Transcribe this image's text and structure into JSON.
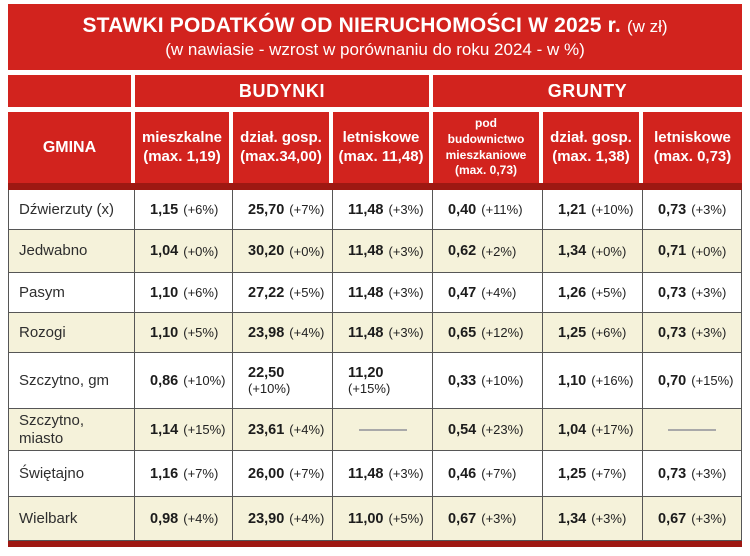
{
  "title": {
    "main": "STAWKI PODATKÓW OD NIERUCHOMOŚCI W 2025 r.",
    "suffix": "(w zł)",
    "subtitle": "(w nawiasie - wzrost w porównaniu do roku 2024 - w %)"
  },
  "colors": {
    "red": "#d2231e",
    "dark_red": "#9e1812",
    "cream_row": "#f5f2da",
    "grid_line": "#565656"
  },
  "chart_data": {
    "type": "table",
    "title": "STAWKI PODATKÓW OD NIERUCHOMOŚCI W 2025 r. (w zł)",
    "subtitle": "(w nawiasie - wzrost w porównaniu do roku 2024 - w %)",
    "groups": [
      "BUDYNKI",
      "GRUNTY"
    ],
    "columns": [
      {
        "label": "GMINA",
        "max": ""
      },
      {
        "label": "mieszkalne",
        "max": "(max. 1,19)"
      },
      {
        "label": "dział. gosp.",
        "max": "(max.34,00)"
      },
      {
        "label": "letniskowe",
        "max": "(max. 11,48)"
      },
      {
        "label": "pod budownictwo mieszkaniowe",
        "max": "(max. 0,73)"
      },
      {
        "label": "dział. gosp.",
        "max": "(max. 1,38)"
      },
      {
        "label": "letniskowe",
        "max": "(max. 0,73)"
      }
    ],
    "rows": [
      {
        "gmina": "Dźwierzuty (x)",
        "cells": [
          {
            "v": "1,15",
            "p": "(+6%)"
          },
          {
            "v": "25,70",
            "p": "(+7%)"
          },
          {
            "v": "11,48",
            "p": "(+3%)"
          },
          {
            "v": "0,40",
            "p": "(+11%)"
          },
          {
            "v": "1,21",
            "p": "(+10%)"
          },
          {
            "v": "0,73",
            "p": "(+3%)"
          }
        ]
      },
      {
        "gmina": "Jedwabno",
        "cells": [
          {
            "v": "1,04",
            "p": "(+0%)"
          },
          {
            "v": "30,20",
            "p": "(+0%)"
          },
          {
            "v": "11,48",
            "p": "(+3%)"
          },
          {
            "v": "0,62",
            "p": "(+2%)"
          },
          {
            "v": "1,34",
            "p": "(+0%)"
          },
          {
            "v": "0,71",
            "p": "(+0%)"
          }
        ]
      },
      {
        "gmina": "Pasym",
        "cells": [
          {
            "v": "1,10",
            "p": "(+6%)"
          },
          {
            "v": "27,22",
            "p": "(+5%)"
          },
          {
            "v": "11,48",
            "p": "(+3%)"
          },
          {
            "v": "0,47",
            "p": "(+4%)"
          },
          {
            "v": "1,26",
            "p": "(+5%)"
          },
          {
            "v": "0,73",
            "p": "(+3%)"
          }
        ]
      },
      {
        "gmina": "Rozogi",
        "cells": [
          {
            "v": "1,10",
            "p": "(+5%)"
          },
          {
            "v": "23,98",
            "p": "(+4%)"
          },
          {
            "v": "11,48",
            "p": "(+3%)"
          },
          {
            "v": "0,65",
            "p": "(+12%)"
          },
          {
            "v": "1,25",
            "p": "(+6%)"
          },
          {
            "v": "0,73",
            "p": "(+3%)"
          }
        ]
      },
      {
        "gmina": "Szczytno, gm",
        "cells": [
          {
            "v": "0,86",
            "p": "(+10%)"
          },
          {
            "v": "22,50",
            "p": "(+10%)"
          },
          {
            "v": "11,20",
            "p": "(+15%)"
          },
          {
            "v": "0,33",
            "p": "(+10%)"
          },
          {
            "v": "1,10",
            "p": "(+16%)"
          },
          {
            "v": "0,70",
            "p": "(+15%)"
          }
        ]
      },
      {
        "gmina": "Szczytno, miasto",
        "cells": [
          {
            "v": "1,14",
            "p": "(+15%)"
          },
          {
            "v": "23,61",
            "p": "(+4%)"
          },
          {
            "dash": true
          },
          {
            "v": "0,54",
            "p": "(+23%)"
          },
          {
            "v": "1,04",
            "p": "(+17%)"
          },
          {
            "dash": true
          }
        ]
      },
      {
        "gmina": "Świętajno",
        "cells": [
          {
            "v": "1,16",
            "p": "(+7%)"
          },
          {
            "v": "26,00",
            "p": "(+7%)"
          },
          {
            "v": "11,48",
            "p": "(+3%)"
          },
          {
            "v": "0,46",
            "p": "(+7%)"
          },
          {
            "v": "1,25",
            "p": "(+7%)"
          },
          {
            "v": "0,73",
            "p": "(+3%)"
          }
        ]
      },
      {
        "gmina": "Wielbark",
        "cells": [
          {
            "v": "0,98",
            "p": "(+4%)"
          },
          {
            "v": "23,90",
            "p": "(+4%)"
          },
          {
            "v": "11,00",
            "p": "(+5%)"
          },
          {
            "v": "0,67",
            "p": "(+3%)"
          },
          {
            "v": "1,34",
            "p": "(+3%)"
          },
          {
            "v": "0,67",
            "p": "(+3%)"
          }
        ]
      }
    ]
  }
}
